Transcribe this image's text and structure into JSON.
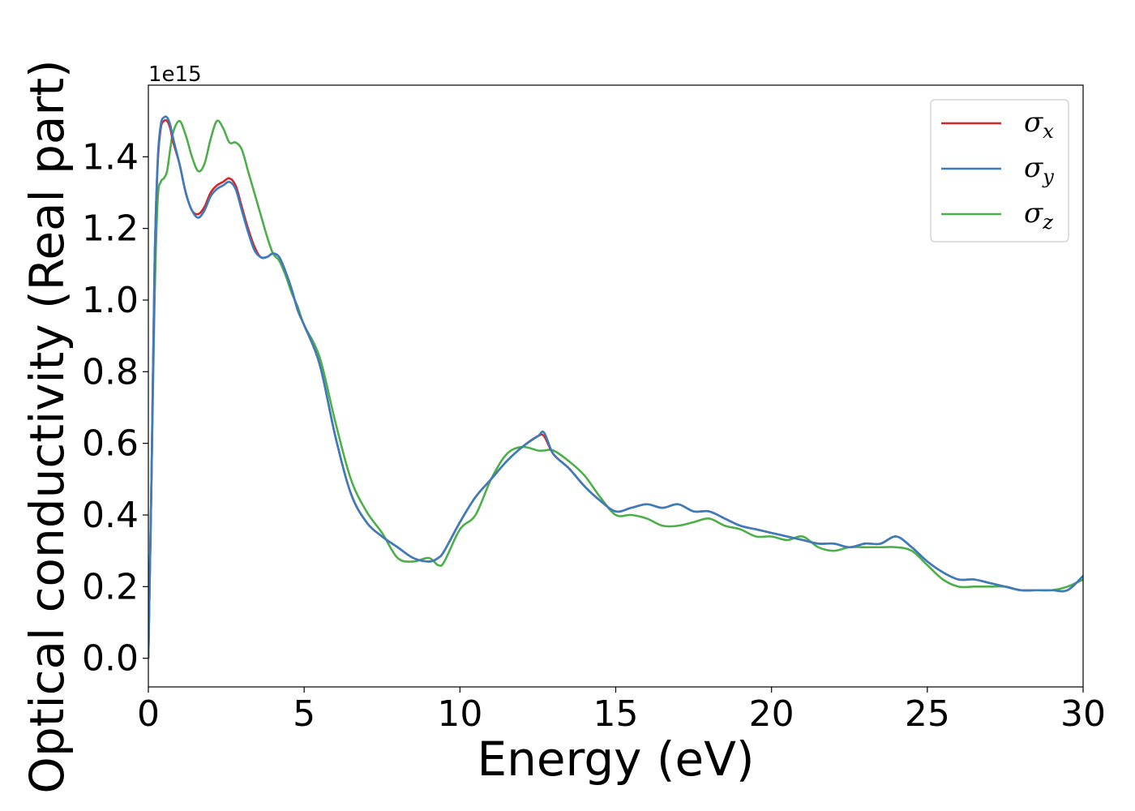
{
  "chart_data": {
    "type": "line",
    "xlabel": "Energy (eV)",
    "ylabel": "Optical conductivity (Real part)",
    "y_offset_label": "1e15",
    "xlim": [
      0,
      30
    ],
    "ylim": [
      -0.08,
      1.6
    ],
    "x_ticks": [
      0,
      5,
      10,
      15,
      20,
      25,
      30
    ],
    "y_ticks": [
      0.0,
      0.2,
      0.4,
      0.6,
      0.8,
      1.0,
      1.2,
      1.4
    ],
    "y_tick_labels": [
      "0.0",
      "0.2",
      "0.4",
      "0.6",
      "0.8",
      "1.0",
      "1.2",
      "1.4"
    ],
    "x_tick_labels": [
      "0",
      "5",
      "10",
      "15",
      "20",
      "25",
      "30"
    ],
    "grid": false,
    "legend_position": "top-right",
    "x": [
      0,
      0.1,
      0.2,
      0.3,
      0.4,
      0.5,
      0.6,
      0.7,
      0.8,
      1.0,
      1.2,
      1.4,
      1.6,
      1.8,
      2.0,
      2.2,
      2.4,
      2.6,
      2.8,
      3.0,
      3.2,
      3.4,
      3.6,
      3.8,
      4.0,
      4.2,
      4.4,
      4.6,
      4.8,
      5.0,
      5.5,
      6.0,
      6.5,
      7.0,
      7.5,
      8.0,
      8.5,
      9.0,
      9.3,
      9.5,
      10.0,
      10.5,
      11.0,
      11.5,
      12.0,
      12.5,
      12.7,
      13.0,
      13.5,
      14.0,
      14.5,
      15.0,
      15.5,
      16.0,
      16.5,
      17.0,
      17.5,
      18.0,
      18.5,
      19.0,
      19.5,
      20.0,
      20.5,
      21.0,
      21.5,
      22.0,
      22.5,
      23.0,
      23.5,
      24.0,
      24.5,
      25.0,
      25.5,
      26.0,
      26.5,
      27.0,
      27.5,
      28.0,
      28.5,
      29.0,
      29.5,
      30.0
    ],
    "series": [
      {
        "name": "σx",
        "color": "#d62728",
        "values": [
          0.0,
          0.5,
          1.1,
          1.38,
          1.48,
          1.5,
          1.5,
          1.48,
          1.44,
          1.38,
          1.3,
          1.25,
          1.24,
          1.26,
          1.3,
          1.32,
          1.33,
          1.34,
          1.32,
          1.26,
          1.2,
          1.15,
          1.12,
          1.12,
          1.13,
          1.12,
          1.08,
          1.03,
          0.97,
          0.93,
          0.82,
          0.62,
          0.46,
          0.38,
          0.34,
          0.31,
          0.28,
          0.27,
          0.28,
          0.3,
          0.38,
          0.45,
          0.5,
          0.55,
          0.59,
          0.62,
          0.62,
          0.57,
          0.53,
          0.48,
          0.44,
          0.41,
          0.42,
          0.43,
          0.42,
          0.43,
          0.41,
          0.41,
          0.39,
          0.37,
          0.36,
          0.35,
          0.34,
          0.33,
          0.32,
          0.32,
          0.31,
          0.32,
          0.32,
          0.34,
          0.31,
          0.27,
          0.24,
          0.22,
          0.22,
          0.21,
          0.2,
          0.19,
          0.19,
          0.19,
          0.19,
          0.23
        ]
      },
      {
        "name": "σy",
        "color": "#3a7dbf",
        "values": [
          0.0,
          0.5,
          1.1,
          1.39,
          1.49,
          1.51,
          1.51,
          1.49,
          1.45,
          1.38,
          1.3,
          1.25,
          1.23,
          1.25,
          1.29,
          1.31,
          1.32,
          1.33,
          1.31,
          1.25,
          1.19,
          1.14,
          1.12,
          1.12,
          1.13,
          1.12,
          1.08,
          1.03,
          0.97,
          0.93,
          0.82,
          0.62,
          0.46,
          0.38,
          0.34,
          0.31,
          0.28,
          0.27,
          0.28,
          0.3,
          0.38,
          0.45,
          0.5,
          0.55,
          0.59,
          0.62,
          0.63,
          0.57,
          0.53,
          0.48,
          0.44,
          0.41,
          0.42,
          0.43,
          0.42,
          0.43,
          0.41,
          0.41,
          0.39,
          0.37,
          0.36,
          0.35,
          0.34,
          0.33,
          0.32,
          0.32,
          0.31,
          0.32,
          0.32,
          0.34,
          0.31,
          0.27,
          0.24,
          0.22,
          0.22,
          0.21,
          0.2,
          0.19,
          0.19,
          0.19,
          0.19,
          0.23
        ]
      },
      {
        "name": "σz",
        "color": "#4daf4a",
        "values": [
          0.0,
          0.5,
          1.0,
          1.28,
          1.33,
          1.34,
          1.36,
          1.42,
          1.47,
          1.5,
          1.46,
          1.4,
          1.36,
          1.38,
          1.45,
          1.5,
          1.48,
          1.44,
          1.44,
          1.42,
          1.36,
          1.3,
          1.24,
          1.18,
          1.13,
          1.11,
          1.07,
          1.02,
          0.98,
          0.93,
          0.84,
          0.66,
          0.5,
          0.41,
          0.35,
          0.28,
          0.27,
          0.28,
          0.26,
          0.27,
          0.36,
          0.4,
          0.5,
          0.57,
          0.59,
          0.58,
          0.58,
          0.58,
          0.55,
          0.51,
          0.45,
          0.4,
          0.4,
          0.39,
          0.37,
          0.37,
          0.38,
          0.39,
          0.37,
          0.36,
          0.34,
          0.34,
          0.33,
          0.34,
          0.31,
          0.3,
          0.31,
          0.31,
          0.31,
          0.31,
          0.3,
          0.26,
          0.22,
          0.2,
          0.2,
          0.2,
          0.2,
          0.19,
          0.19,
          0.19,
          0.2,
          0.22
        ]
      }
    ]
  }
}
